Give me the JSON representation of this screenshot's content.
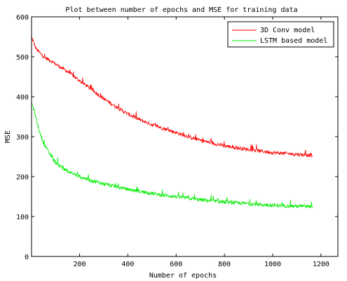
{
  "chart_data": {
    "type": "line",
    "title": "Plot between number of epochs and MSE for training data",
    "xlabel": "Number of epochs",
    "ylabel": "MSE",
    "xlim": [
      1,
      1270
    ],
    "ylim": [
      0,
      600
    ],
    "xticks": [
      200,
      400,
      600,
      800,
      1000,
      1200
    ],
    "yticks": [
      0,
      100,
      200,
      300,
      400,
      500,
      600
    ],
    "grid": false,
    "legend_position": "top-right",
    "series": [
      {
        "name": "3D Conv model",
        "color": "#ff0000",
        "x": [
          1,
          20,
          50,
          80,
          100,
          150,
          200,
          250,
          300,
          350,
          400,
          450,
          500,
          550,
          600,
          650,
          700,
          750,
          800,
          850,
          900,
          950,
          1000,
          1050,
          1100,
          1165
        ],
        "y": [
          550,
          520,
          500,
          490,
          482,
          463,
          440,
          418,
          395,
          375,
          357,
          342,
          330,
          320,
          310,
          300,
          291,
          284,
          277,
          272,
          268,
          264,
          260,
          258,
          256,
          253
        ]
      },
      {
        "name": "LSTM based model",
        "color": "#00ee00",
        "x": [
          1,
          10,
          20,
          35,
          50,
          75,
          100,
          150,
          200,
          250,
          300,
          350,
          400,
          450,
          500,
          550,
          600,
          650,
          700,
          750,
          800,
          850,
          900,
          950,
          1000,
          1050,
          1100,
          1165
        ],
        "y": [
          385,
          370,
          345,
          310,
          285,
          258,
          235,
          213,
          200,
          190,
          182,
          175,
          168,
          163,
          158,
          153,
          150,
          146,
          142,
          139,
          136,
          134,
          132,
          130,
          128,
          127,
          126,
          125
        ]
      }
    ]
  }
}
